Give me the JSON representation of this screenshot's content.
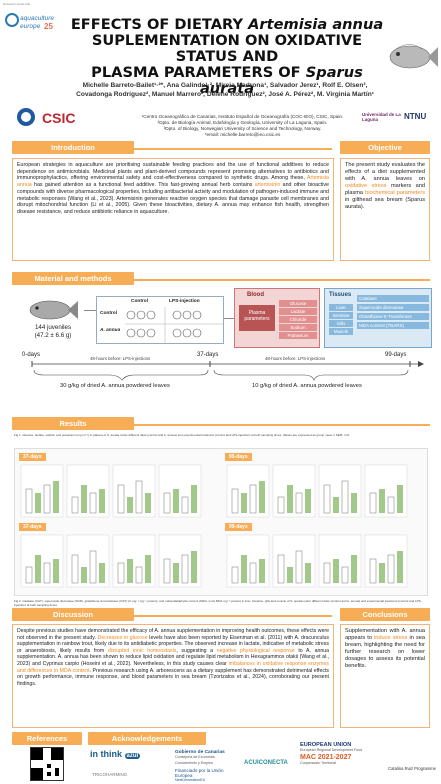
{
  "corner_tag": "Research article title",
  "header": {
    "title_line1_a": "EFFECTS OF DIETARY ",
    "title_line1_b": "Artemisia annua",
    "title_line2": "SUPLEMENTATION ON OXIDATIVE STATUS AND",
    "title_line3_a": "PLASMA PARAMETERS OF ",
    "title_line3_b": "Sparus aurata"
  },
  "logos": {
    "conference": "aquaculture europe 25",
    "csic": "CSIC",
    "ull": "Universidad de La Laguna",
    "ntnu": "NTNU"
  },
  "authors_line1": "Michelle Barreto-Bailet¹·²*, Ana Galindo¹·², Mireia Madrona¹, Salvador Jerez¹, Rolf E. Olsen³,",
  "authors_line2": "Covadonga Rodríguez², Manuel Marrero², Deiene Rodríguez², José A. Pérez², M. Virginia Martín¹",
  "affiliations": [
    "¹Centro Oceanográfico de Canarias, Instituto Español de Oceanografía (COC-IEO), CSIC, Spain.",
    "²Dpto. de Biología Animal, Edafología y Geología, University of La Laguna, Spain.",
    "³Dpto. of Biology, Norwegian University of Science and Technology, Norway.",
    "*email: michelle.barreto@ieo.csic.es"
  ],
  "sections": {
    "introduction": "Introduction",
    "objective": "Objective",
    "methods": "Material and methods",
    "results": "Results",
    "discussion": "Discussion",
    "conclusions": "Conclusions",
    "references": "References",
    "acknowledgements": "Acknowledgements"
  },
  "intro": {
    "p1": "European strategies in aquaculture are prioritising sustainable feeding practices and the use of functional additives to reduce dependence on antimicrobials. Medicinal plants and plant-derived compounds represent promising alternatives to antibiotics and immunoprophylactics, offering environmental safety and cost-effectiveness compared to synthetic drugs. Among these, ",
    "p1_hl": "Artemisia annua",
    "p1_b": " has gained attention as a functional feed additive. This fast-growing annual herb contains ",
    "p1_hl2": "artemisinin",
    "p1_c": " and other bioactive compounds with diverse pharmacological properties, including antibacterial activity and modulation of pathogen-induced immune and metabolic responses (Wang et al., 2023). Artemisinin generates reactive oxygen species that damage parasite cell membranes and disrupt mitochondrial function (Li et al., 2005). Given these bioactivities, dietary A. annua may enhance fish health, strengthen disease resistance, and reduce antibiotic reliance in aquaculture."
  },
  "objective": {
    "a": "The present study evaluates the effects of a diet supplemented with A. annua leaves on ",
    "hl1": "oxidative stress",
    "b": " markers and plasma ",
    "hl2": "biochemical parameters",
    "c": " in gilthead sea bream (Sparus aurata)."
  },
  "methods": {
    "juveniles": "144 juveniles",
    "weight": "(47.2 ± 6.6 g)",
    "col_control": "Control",
    "col_lps": "LPS-injection",
    "row_control": "Control",
    "row_aa": "A. annua",
    "blood": "Blood",
    "plasma": "Plasma parameters",
    "blood_items": [
      "Glucose",
      "Lactate",
      "Chloride",
      "Sodium",
      "Potassium"
    ],
    "tissues": "Tissues",
    "tissue_items": [
      "Liver",
      "Intestine",
      "Gills",
      "Muscle"
    ],
    "enzymes": [
      "Catalase",
      "Superoxide dismutase",
      "Glutathione-S-Transferase",
      "MDA content (TBARS)"
    ],
    "t0": "0-days",
    "t37": "37-days",
    "t99": "99-days",
    "lps1": "48-hours before: LPS-injections",
    "lps2": "48-hours before: LPS-injections",
    "feed1": "30 g/kg of dried A. annua powdered leaves",
    "feed2": "10 g/kg of dried A. annua powdered leaves"
  },
  "results": {
    "caption1": "Fig 1. Glucose, lactate, sodium and potassium (mg ml⁻¹) in plasma of S. aurata under different diets (control and A. annua) and experimental treatment (control and LPS-injection) at both sampling times. Values are expressed as group mean ± SEM; n=6.",
    "caption2": "Fig 2. Catalase (CAT), superoxide dismutase (SOD), glutathione-S-transferase (GST) (U mg⁻¹ mg⁻¹ protein), and malondialdehyde content (MDA, nmol MDA mg⁻¹ protein) in liver, intestine, gills and muscle of S. aurata under different diets (control and A. annua) and experimental treatment (control and LPS-injection) at both sampling times.",
    "d37": "37-days",
    "d99": "99-days",
    "legend_control": "Control",
    "legend_aa": "A. annua"
  },
  "discussion": {
    "a": "Despite previous studies have demonstrated the efficacy of A. annua supplementation in improving health outcomes, these effects were not observed in the present study. ",
    "hl1": "Decreases in glucose",
    "b": " levels have also been reported by Eisenman et al. (2011) with A. dracunculus supplementation in rainbow trout, likely due to its antidiabetic properties. The observed increase in lactate, indicative of metabolic stress or anaerobiosis, likely results from ",
    "hl2": "disrupted ionic homeostasis",
    "c": ", suggesting a ",
    "hl3": "negative physiological response",
    "d": " to A. annua supplementation. A. annua has been shown to reduce lipid oxidation and regulate lipid metabolism in Hexagrammos otakii (Wang et al., 2023) and Cyprinus carpio (Hoseini et al., 2022). Nevertheless, in this study causes clear ",
    "hl4": "imbalances in oxidative response enzymes and differences in MDA content",
    "e": ". Previous research using A. arborescens as a dietary supplement has demonstrated detrimental effects on growth performance, immune response, and blood parameters in sea bream (Tzortzatos et al., 2024), corroborating our present findings."
  },
  "conclusions": {
    "a": "Supplementation with A. annua appears to ",
    "hl": "induce stress",
    "b": " in sea bream, highlighting the need for further research on lower dosages to assess its potential benefits."
  },
  "ack": {
    "inthink": "in think",
    "azul": "azul",
    "tricoharming": "TRICOHARMING",
    "gob": "Gobierno de Canarias",
    "gob_sub": "Consejería de Economía, Conocimiento y Empleo",
    "eu": "Financiado por la Unión Europea",
    "eu_sub": "NextGenerationEU",
    "acui": "ACUICONECTA",
    "union": "EUROPEAN UNION",
    "union_sub": "European Regional Development Fund",
    "mac": "MAC 2021-2027",
    "mac_sub": "Cooperación Territorial",
    "ruiz": "Catalina Ruiz Programme"
  },
  "colors": {
    "accent": "#f6ad55",
    "green": "#a3c98a",
    "maroon": "#b85454",
    "red_pill": "#e28f8f",
    "blue_pill": "#87b8de"
  }
}
